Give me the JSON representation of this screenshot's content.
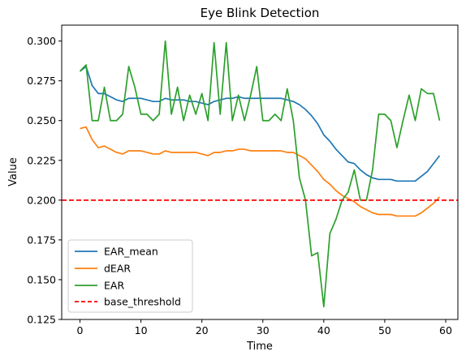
{
  "chart_data": {
    "type": "line",
    "title": "Eye Blink Detection",
    "xlabel": "Time",
    "ylabel": "Value",
    "xlim": [
      -3,
      62
    ],
    "ylim": [
      0.125,
      0.31
    ],
    "xticks": [
      "0",
      "10",
      "20",
      "30",
      "40",
      "50",
      "60"
    ],
    "yticks": [
      "0.125",
      "0.150",
      "0.175",
      "0.200",
      "0.225",
      "0.250",
      "0.275",
      "0.300"
    ],
    "legend_position": "lower-left",
    "grid": false,
    "x": [
      0,
      1,
      2,
      3,
      4,
      5,
      6,
      7,
      8,
      9,
      10,
      11,
      12,
      13,
      14,
      15,
      16,
      17,
      18,
      19,
      20,
      21,
      22,
      23,
      24,
      25,
      26,
      27,
      28,
      29,
      30,
      31,
      32,
      33,
      34,
      35,
      36,
      37,
      38,
      39,
      40,
      41,
      42,
      43,
      44,
      45,
      46,
      47,
      48,
      49,
      50,
      51,
      52,
      53,
      54,
      55,
      56,
      57,
      58,
      59
    ],
    "series": [
      {
        "name": "EAR_mean",
        "color": "#1f77b4",
        "style": "solid",
        "values": [
          0.281,
          0.284,
          0.272,
          0.267,
          0.267,
          0.265,
          0.263,
          0.262,
          0.264,
          0.264,
          0.264,
          0.263,
          0.262,
          0.262,
          0.264,
          0.263,
          0.263,
          0.263,
          0.262,
          0.262,
          0.261,
          0.26,
          0.262,
          0.263,
          0.264,
          0.264,
          0.265,
          0.264,
          0.264,
          0.264,
          0.264,
          0.264,
          0.264,
          0.264,
          0.263,
          0.262,
          0.26,
          0.257,
          0.253,
          0.248,
          0.241,
          0.237,
          0.232,
          0.228,
          0.224,
          0.223,
          0.219,
          0.216,
          0.214,
          0.213,
          0.213,
          0.213,
          0.212,
          0.212,
          0.212,
          0.212,
          0.215,
          0.218,
          0.223,
          0.228
        ]
      },
      {
        "name": "dEAR",
        "color": "#ff7f0e",
        "style": "solid",
        "values": [
          0.245,
          0.246,
          0.238,
          0.233,
          0.234,
          0.232,
          0.23,
          0.229,
          0.231,
          0.231,
          0.231,
          0.23,
          0.229,
          0.229,
          0.231,
          0.23,
          0.23,
          0.23,
          0.23,
          0.23,
          0.229,
          0.228,
          0.23,
          0.23,
          0.231,
          0.231,
          0.232,
          0.232,
          0.231,
          0.231,
          0.231,
          0.231,
          0.231,
          0.231,
          0.23,
          0.23,
          0.228,
          0.226,
          0.222,
          0.218,
          0.213,
          0.21,
          0.206,
          0.203,
          0.201,
          0.199,
          0.196,
          0.194,
          0.192,
          0.191,
          0.191,
          0.191,
          0.19,
          0.19,
          0.19,
          0.19,
          0.192,
          0.195,
          0.198,
          0.202
        ]
      },
      {
        "name": "EAR",
        "color": "#2ca02c",
        "style": "solid",
        "values": [
          0.281,
          0.285,
          0.25,
          0.25,
          0.271,
          0.25,
          0.25,
          0.254,
          0.284,
          0.271,
          0.254,
          0.254,
          0.25,
          0.254,
          0.3,
          0.254,
          0.271,
          0.25,
          0.266,
          0.254,
          0.267,
          0.25,
          0.299,
          0.254,
          0.299,
          0.25,
          0.266,
          0.25,
          0.266,
          0.284,
          0.25,
          0.25,
          0.254,
          0.25,
          0.27,
          0.25,
          0.214,
          0.2,
          0.165,
          0.167,
          0.133,
          0.179,
          0.188,
          0.2,
          0.205,
          0.219,
          0.2,
          0.2,
          0.219,
          0.254,
          0.254,
          0.25,
          0.233,
          0.25,
          0.266,
          0.25,
          0.27,
          0.267,
          0.267,
          0.25
        ]
      }
    ],
    "reference_lines": [
      {
        "name": "base_threshold",
        "color": "#ff0000",
        "style": "dashed",
        "y": 0.2
      }
    ]
  }
}
